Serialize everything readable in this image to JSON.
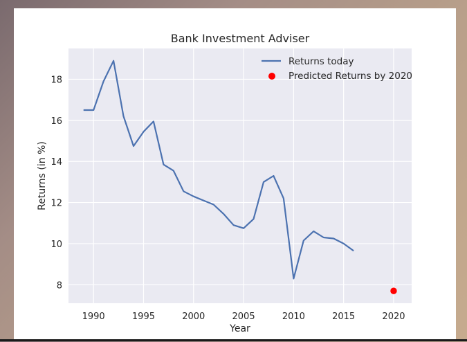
{
  "chart_data": {
    "type": "line",
    "title": "Bank Investment Adviser",
    "xlabel": "Year",
    "ylabel": "Returns (in %)",
    "xlim": [
      1987.5,
      2021.8
    ],
    "ylim": [
      7.1,
      19.5
    ],
    "xticks": [
      1990,
      1995,
      2000,
      2005,
      2010,
      2015,
      2020
    ],
    "yticks": [
      8,
      10,
      12,
      14,
      16,
      18
    ],
    "grid": true,
    "legend_position": "top-right",
    "series": [
      {
        "name": "Returns today",
        "kind": "line",
        "color": "#4c72b0",
        "x": [
          1989,
          1990,
          1991,
          1992,
          1993,
          1994,
          1995,
          1996,
          1997,
          1998,
          1999,
          2000,
          2001,
          2002,
          2003,
          2004,
          2005,
          2006,
          2007,
          2008,
          2009,
          2010,
          2011,
          2012,
          2013,
          2014,
          2015,
          2016
        ],
        "y": [
          16.5,
          16.5,
          17.9,
          18.9,
          16.2,
          14.75,
          15.45,
          15.95,
          13.85,
          13.55,
          12.55,
          12.3,
          12.1,
          11.9,
          11.45,
          10.9,
          10.75,
          11.2,
          13.0,
          13.3,
          12.2,
          8.3,
          10.15,
          10.6,
          10.3,
          10.25,
          10.0,
          9.65
        ]
      },
      {
        "name": "Predicted Returns by 2020",
        "kind": "scatter",
        "color": "#ff0000",
        "x": [
          2020
        ],
        "y": [
          7.7
        ]
      }
    ]
  }
}
